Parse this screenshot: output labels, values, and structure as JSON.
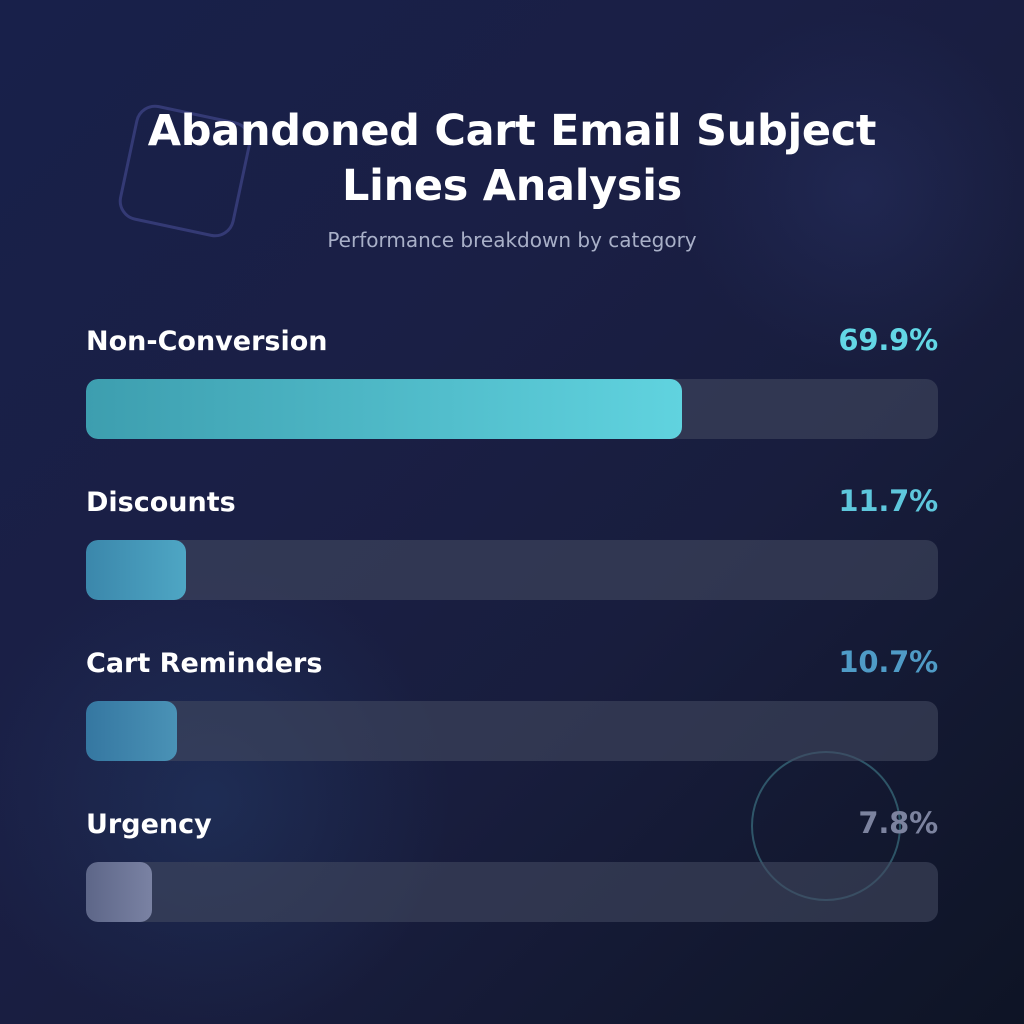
{
  "chart_data": {
    "type": "bar",
    "title": "Abandoned Cart Email Subject Lines Analysis",
    "subtitle": "Performance breakdown by category",
    "categories": [
      "Non-Conversion",
      "Discounts",
      "Cart Reminders",
      "Urgency"
    ],
    "values": [
      69.9,
      11.7,
      10.7,
      7.8
    ],
    "value_labels": [
      "69.9%",
      "11.7%",
      "10.7%",
      "7.8%"
    ],
    "xlabel": "",
    "ylabel": "",
    "ylim": [
      0,
      100
    ],
    "colors": {
      "bar_fills": [
        [
          "#3d9eaf",
          "#60d3df"
        ],
        [
          "#3b87ab",
          "#4ea6c4"
        ],
        [
          "#3577a1",
          "#4a92b6"
        ],
        [
          "#5d6688",
          "#7a82a3"
        ]
      ],
      "value_text": [
        "#63d7e5",
        "#5ec7dc",
        "#4f9bc6",
        "#7c839f"
      ]
    }
  }
}
